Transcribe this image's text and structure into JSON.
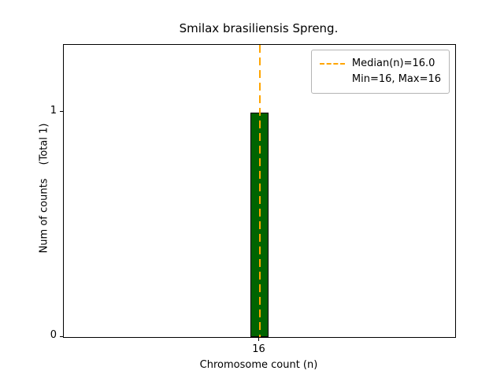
{
  "chart_data": {
    "type": "bar",
    "title": "Smilax brasiliensis Spreng.",
    "xlabel": "Chromosome count (n)",
    "ylabel": "Num of counts",
    "ylabel_annotation": "(Total 1)",
    "categories": [
      "16"
    ],
    "values": [
      1
    ],
    "ylim": [
      0,
      1.3
    ],
    "yticks": [
      {
        "value": 0,
        "label": "0"
      },
      {
        "value": 1,
        "label": "1"
      }
    ],
    "xticks": [
      {
        "category_index": 0,
        "label": "16"
      }
    ],
    "median": 16.0,
    "min": 16,
    "max": 16,
    "grid": false,
    "legend_position": "upper right",
    "legend": {
      "median": "Median(n)=16.0",
      "minmax": "Min=16, Max=16"
    },
    "colors": {
      "bar": "#006400",
      "bar_edge": "#000000",
      "median_line": "#ffa500",
      "axes": "#000000",
      "legend_border": "#b4b4b4"
    }
  }
}
